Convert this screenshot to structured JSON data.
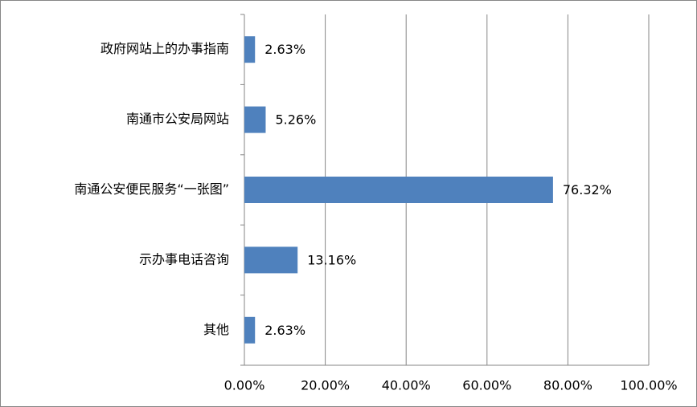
{
  "chart_data": {
    "type": "hbar",
    "categories": [
      "政府网站上的办事指南",
      "南通市公安局网站",
      "南通公安便民服务“一张图”",
      "示办事电话咨询",
      "其他"
    ],
    "values": [
      2.63,
      5.26,
      76.32,
      13.16,
      2.63
    ],
    "value_labels": [
      "2.63%",
      "5.26%",
      "76.32%",
      "13.16%",
      "2.63%"
    ],
    "color": "#4f81bd",
    "xlim": [
      0,
      100
    ],
    "xticks": [
      {
        "value": 0,
        "label": "0.00%"
      },
      {
        "value": 20,
        "label": "20.00%"
      },
      {
        "value": 40,
        "label": "40.00%"
      },
      {
        "value": 60,
        "label": "60.00%"
      },
      {
        "value": 80,
        "label": "80.00%"
      },
      {
        "value": 100,
        "label": "100.00%"
      }
    ],
    "grid": true
  }
}
